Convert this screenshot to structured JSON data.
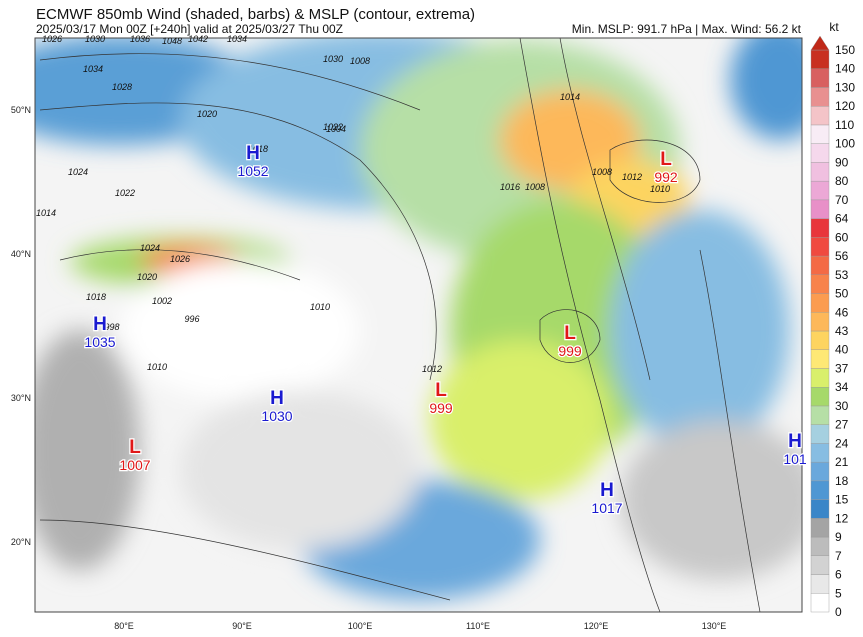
{
  "header": {
    "title": "ECMWF 850mb Wind (shaded, barbs) & MSLP (contour, extrema)",
    "subtitle": "2025/03/17 Mon 00Z [+240h] valid at 2025/03/27 Thu 00Z",
    "stats": "Min. MSLP: 991.7 hPa | Max. Wind: 56.2 kt"
  },
  "axes": {
    "lat_labels": [
      "50°N",
      "40°N",
      "30°N",
      "20°N"
    ],
    "lon_labels": [
      "80°E",
      "90°E",
      "100°E",
      "110°E",
      "120°E",
      "130°E"
    ]
  },
  "colorbar": {
    "unit": "kt",
    "levels": [
      0,
      5,
      6,
      7,
      9,
      12,
      15,
      18,
      21,
      24,
      27,
      30,
      34,
      37,
      40,
      43,
      46,
      50,
      53,
      56,
      60,
      64,
      70,
      80,
      90,
      100,
      110,
      120,
      130,
      140,
      150
    ],
    "colors": [
      "#ffffff",
      "#e8e8e8",
      "#d2d2d2",
      "#bcbcbc",
      "#a4a4a4",
      "#3a86c8",
      "#4f97d3",
      "#6aa8dc",
      "#87bde2",
      "#a5d0e0",
      "#b6dfa6",
      "#a6d96a",
      "#d9ef6b",
      "#fee875",
      "#fdd460",
      "#fdb85a",
      "#fb9c50",
      "#f8834b",
      "#f46a45",
      "#f04a40",
      "#e8353b",
      "#e890c8",
      "#eca8d6",
      "#f0c0e0",
      "#f5d8ec",
      "#f8ecf5",
      "#f4c4c8",
      "#e89090",
      "#d86060",
      "#c83020"
    ],
    "arrow_color": "#c02818"
  },
  "extrema": [
    {
      "type": "H",
      "value": "1052"
    },
    {
      "type": "H",
      "value": "1035"
    },
    {
      "type": "H",
      "value": "1030"
    },
    {
      "type": "L",
      "value": "1007"
    },
    {
      "type": "L",
      "value": "999"
    },
    {
      "type": "L",
      "value": "999"
    },
    {
      "type": "L",
      "value": "992"
    },
    {
      "type": "H",
      "value": "1017"
    },
    {
      "type": "H",
      "value": "101"
    }
  ],
  "contour_labels": [
    "1026",
    "1030",
    "1036",
    "1042",
    "1034",
    "1048",
    "1034",
    "1028",
    "1030",
    "1022",
    "1020",
    "1018",
    "1024",
    "1022",
    "1014",
    "1024",
    "1026",
    "1020",
    "1018",
    "1002",
    "996",
    "998",
    "1010",
    "1008",
    "1004",
    "1010",
    "1012",
    "1014",
    "1016",
    "1008",
    "1008",
    "1012",
    "1010"
  ]
}
